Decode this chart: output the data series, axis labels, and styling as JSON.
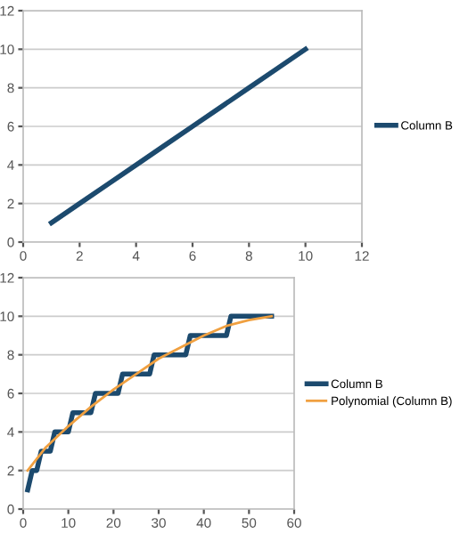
{
  "chart_data": [
    {
      "type": "line",
      "x": [
        1,
        2,
        3,
        4,
        5,
        6,
        7,
        8,
        9,
        10
      ],
      "series": [
        {
          "name": "Column B",
          "color": "#1c4a6e",
          "values": [
            1,
            2,
            3,
            4,
            5,
            6,
            7,
            8,
            9,
            10
          ]
        }
      ],
      "xlim": [
        0,
        12
      ],
      "xticks": [
        0,
        2,
        4,
        6,
        8,
        10,
        12
      ],
      "ylim": [
        0,
        12
      ],
      "yticks": [
        0,
        2,
        4,
        6,
        8,
        10,
        12
      ],
      "grid": "y",
      "legend": "right",
      "marker": "none",
      "line_style": "solid"
    },
    {
      "type": "line",
      "series": [
        {
          "name": "Column B",
          "color": "#1c4a6e",
          "x": [
            1,
            2,
            3,
            4,
            6,
            7,
            10,
            11,
            15,
            16,
            21,
            22,
            28,
            29,
            36,
            37,
            45,
            46,
            55
          ],
          "values": [
            1,
            2,
            2,
            3,
            3,
            4,
            4,
            5,
            5,
            6,
            6,
            7,
            7,
            8,
            8,
            9,
            9,
            10,
            10
          ]
        },
        {
          "name": "Polynomial (Column B)",
          "color": "#f0a040",
          "x": [
            1,
            5,
            10,
            15,
            20,
            25,
            30,
            35,
            40,
            45,
            50,
            55
          ],
          "values": [
            2.0,
            3.2,
            4.3,
            5.3,
            6.2,
            7.0,
            7.8,
            8.4,
            9.0,
            9.5,
            9.8,
            10.0
          ]
        }
      ],
      "xlim": [
        0,
        60
      ],
      "xticks": [
        0,
        10,
        20,
        30,
        40,
        50,
        60
      ],
      "ylim": [
        0,
        12
      ],
      "yticks": [
        0,
        2,
        4,
        6,
        8,
        10,
        12
      ],
      "grid": "y",
      "legend": "right",
      "marker": "none",
      "line_style": "solid"
    }
  ]
}
